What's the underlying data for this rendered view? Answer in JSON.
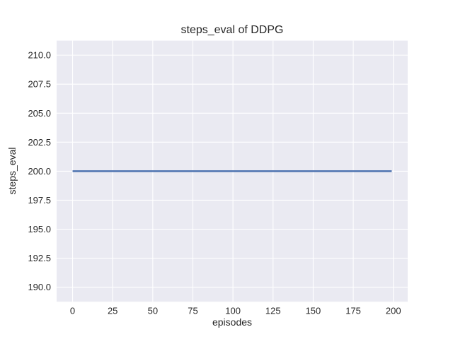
{
  "figure": {
    "background": "#ffffff"
  },
  "chart_data": {
    "type": "line",
    "title": "steps_eval of DDPG",
    "xlabel": "episodes",
    "ylabel": "steps_eval",
    "series": [
      {
        "name": "DDPG",
        "x": [
          0,
          199
        ],
        "y": [
          200,
          200
        ],
        "color": "#4c72b0",
        "line_width": 2.5
      }
    ],
    "xlim": [
      -9.95,
      208.95
    ],
    "ylim": [
      188.75,
      211.25
    ],
    "xticks": [
      0,
      25,
      50,
      75,
      100,
      125,
      150,
      175,
      200
    ],
    "xticklabels": [
      "0",
      "25",
      "50",
      "75",
      "100",
      "125",
      "150",
      "175",
      "200"
    ],
    "yticks": [
      190,
      192.5,
      195,
      197.5,
      200,
      202.5,
      205,
      207.5,
      210
    ],
    "yticklabels": [
      "190.0",
      "192.5",
      "195.0",
      "197.5",
      "200.0",
      "202.5",
      "205.0",
      "207.5",
      "210.0"
    ],
    "grid": true,
    "legend": "none",
    "style": {
      "panel_bg": "#eaeaf2",
      "grid_color": "#ffffff",
      "grid_width": 1.1,
      "fig_bg": "#ffffff",
      "tick_color": "#262626"
    }
  }
}
